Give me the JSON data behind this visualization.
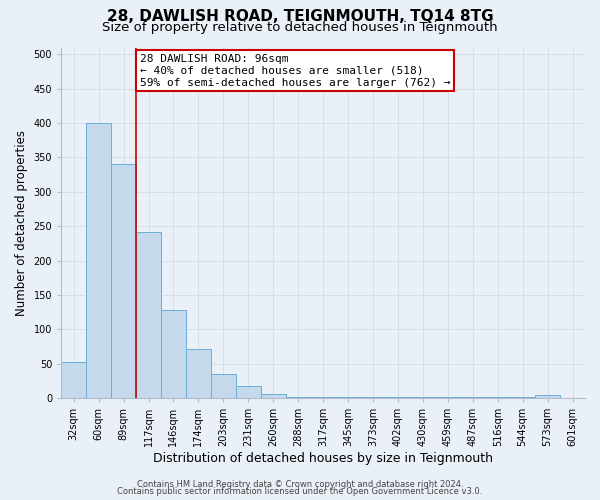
{
  "title": "28, DAWLISH ROAD, TEIGNMOUTH, TQ14 8TG",
  "subtitle": "Size of property relative to detached houses in Teignmouth",
  "xlabel": "Distribution of detached houses by size in Teignmouth",
  "ylabel": "Number of detached properties",
  "bar_values": [
    53,
    400,
    340,
    242,
    128,
    72,
    35,
    18,
    6,
    2,
    1,
    1,
    1,
    1,
    1,
    1,
    1,
    1,
    1,
    4
  ],
  "bin_labels": [
    "32sqm",
    "60sqm",
    "89sqm",
    "117sqm",
    "146sqm",
    "174sqm",
    "203sqm",
    "231sqm",
    "260sqm",
    "288sqm",
    "317sqm",
    "345sqm",
    "373sqm",
    "402sqm",
    "430sqm",
    "459sqm",
    "487sqm",
    "516sqm",
    "544sqm",
    "573sqm",
    "601sqm"
  ],
  "bar_color": "#c5d9ec",
  "bar_edge_color": "#6aaed6",
  "redline_bin_index": 2,
  "annotation_title": "28 DAWLISH ROAD: 96sqm",
  "annotation_line1": "← 40% of detached houses are smaller (518)",
  "annotation_line2": "59% of semi-detached houses are larger (762) →",
  "annotation_box_color": "#ffffff",
  "annotation_box_edge": "#cc0000",
  "redline_color": "#cc0000",
  "ylim": [
    0,
    510
  ],
  "yticks": [
    0,
    50,
    100,
    150,
    200,
    250,
    300,
    350,
    400,
    450,
    500
  ],
  "footer1": "Contains HM Land Registry data © Crown copyright and database right 2024.",
  "footer2": "Contains public sector information licensed under the Open Government Licence v3.0.",
  "bg_color": "#eaf0f7",
  "grid_color": "#d0dce8",
  "title_fontsize": 11,
  "subtitle_fontsize": 9.5,
  "xlabel_fontsize": 9,
  "ylabel_fontsize": 8.5,
  "tick_fontsize": 7,
  "footer_fontsize": 6,
  "annotation_fontsize": 8
}
